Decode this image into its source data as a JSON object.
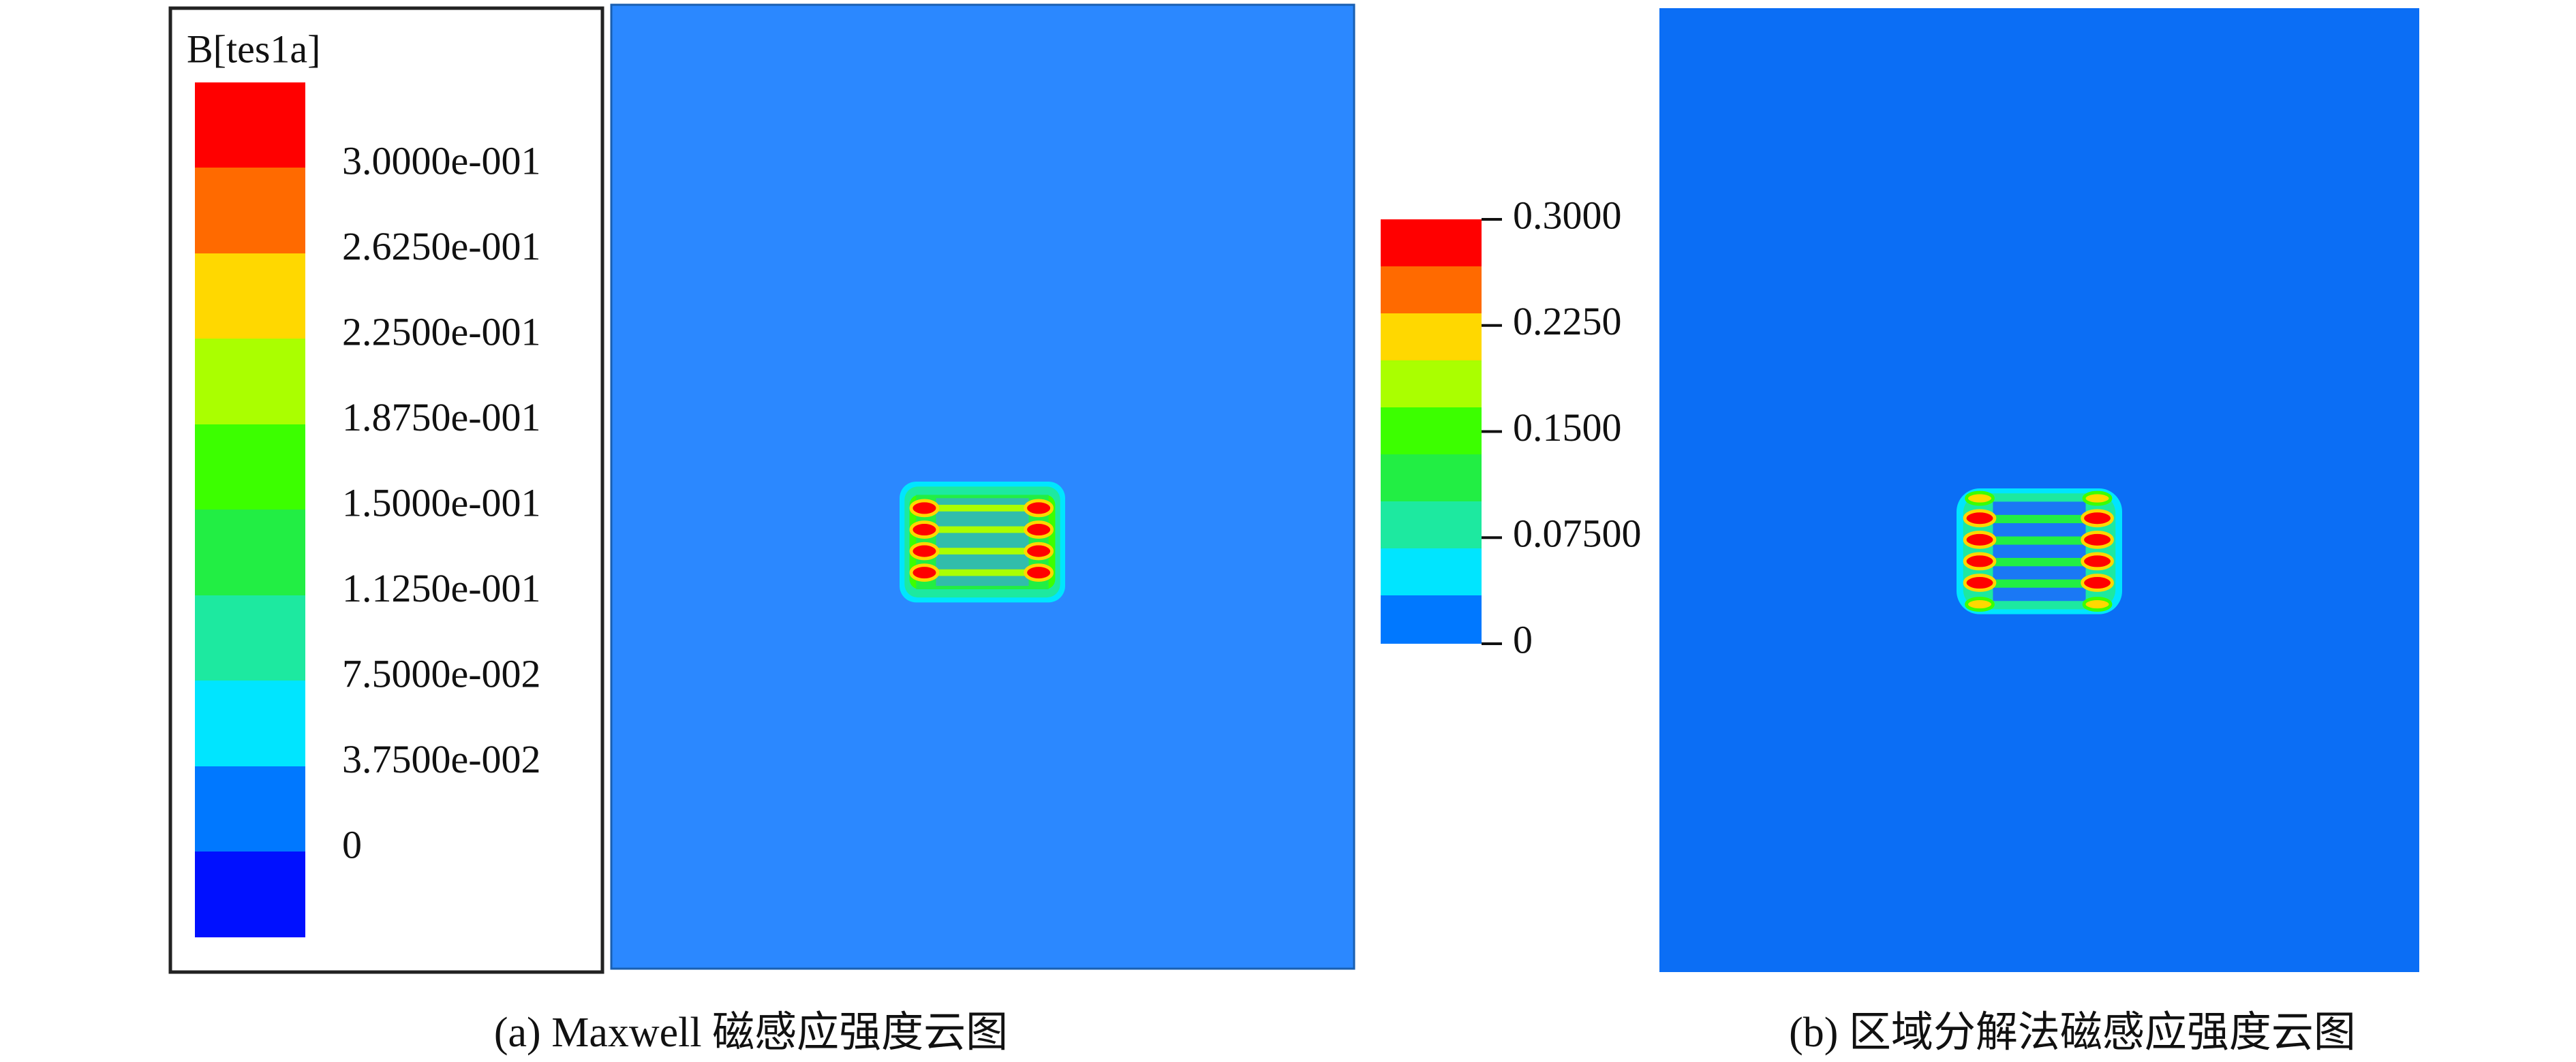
{
  "panel_a": {
    "legend": {
      "title": "B[tes1a]",
      "labels": [
        "3.0000e-001",
        "2.6250e-001",
        "2.2500e-001",
        "1.8750e-001",
        "1.5000e-001",
        "1.1250e-001",
        "7.5000e-002",
        "3.7500e-002",
        "0"
      ]
    },
    "caption": "(a) Maxwell 磁感应强度云图"
  },
  "panel_b": {
    "colorbar": {
      "labels": [
        "0.3000",
        "0.2250",
        "0.1500",
        "0.07500",
        "0"
      ]
    },
    "caption": "(b) 区域分解法磁感应强度云图"
  }
}
